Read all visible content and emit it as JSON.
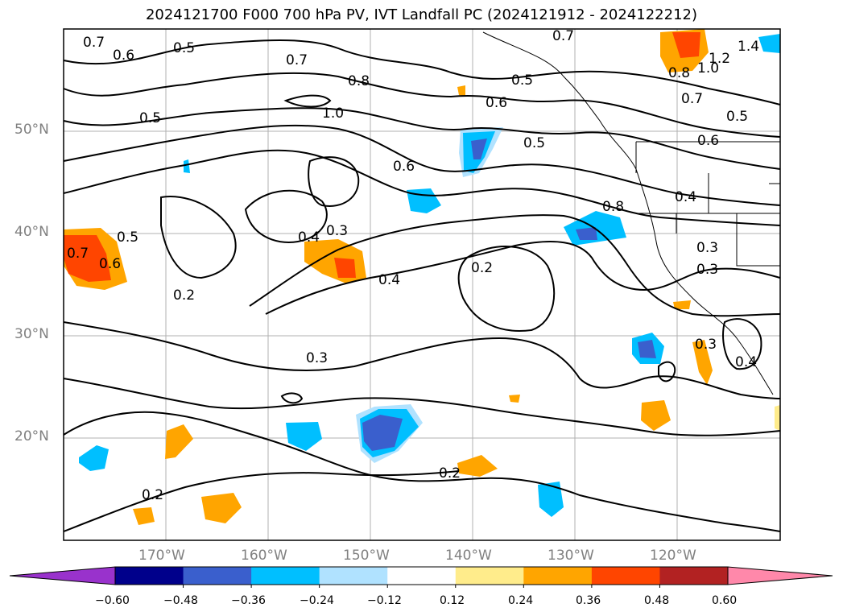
{
  "title": "2024121700 F000 700 hPa PV, IVT Landfall PC (2024121912 - 2024122212)",
  "axes": {
    "lat_labels": [
      "50°N",
      "40°N",
      "30°N",
      "20°N"
    ],
    "lon_labels": [
      "170°W",
      "160°W",
      "150°W",
      "140°W",
      "130°W",
      "120°W"
    ]
  },
  "contour_labels": [
    "0.7",
    "0.6",
    "0.5",
    "0.7",
    "0.8",
    "1.0",
    "0.5",
    "0.5",
    "0.6",
    "0.5",
    "0.7",
    "1.4",
    "1.2",
    "1.0",
    "0.8",
    "0.7",
    "0.5",
    "0.6",
    "0.6",
    "0.4",
    "0.8",
    "0.3",
    "0.4",
    "0.3",
    "0.4",
    "0.2",
    "0.2",
    "0.3",
    "0.3",
    "0.4",
    "0.7",
    "0.6",
    "0.5",
    "0.2",
    "0.3",
    "0.2"
  ],
  "colorbar": {
    "ticks": [
      "−0.60",
      "−0.48",
      "−0.36",
      "−0.24",
      "−0.12",
      "0.12",
      "0.24",
      "0.36",
      "0.48",
      "0.60"
    ],
    "colors": [
      "#9932cc",
      "#00008b",
      "#3a5fcd",
      "#00bfff",
      "#b0e2ff",
      "#ffffff",
      "#ffec8b",
      "#ffa500",
      "#ff4500",
      "#b22222",
      "#ff88aa"
    ]
  },
  "chart_data": {
    "type": "map",
    "field_shaded": "IVT landfall PC",
    "field_contoured": "700 hPa PV",
    "lat_range": [
      10,
      60
    ],
    "lon_range": [
      -180,
      -110
    ],
    "grid": true,
    "colorbar_levels": [
      -0.6,
      -0.48,
      -0.36,
      -0.24,
      -0.12,
      0.12,
      0.24,
      0.36,
      0.48,
      0.6
    ]
  }
}
